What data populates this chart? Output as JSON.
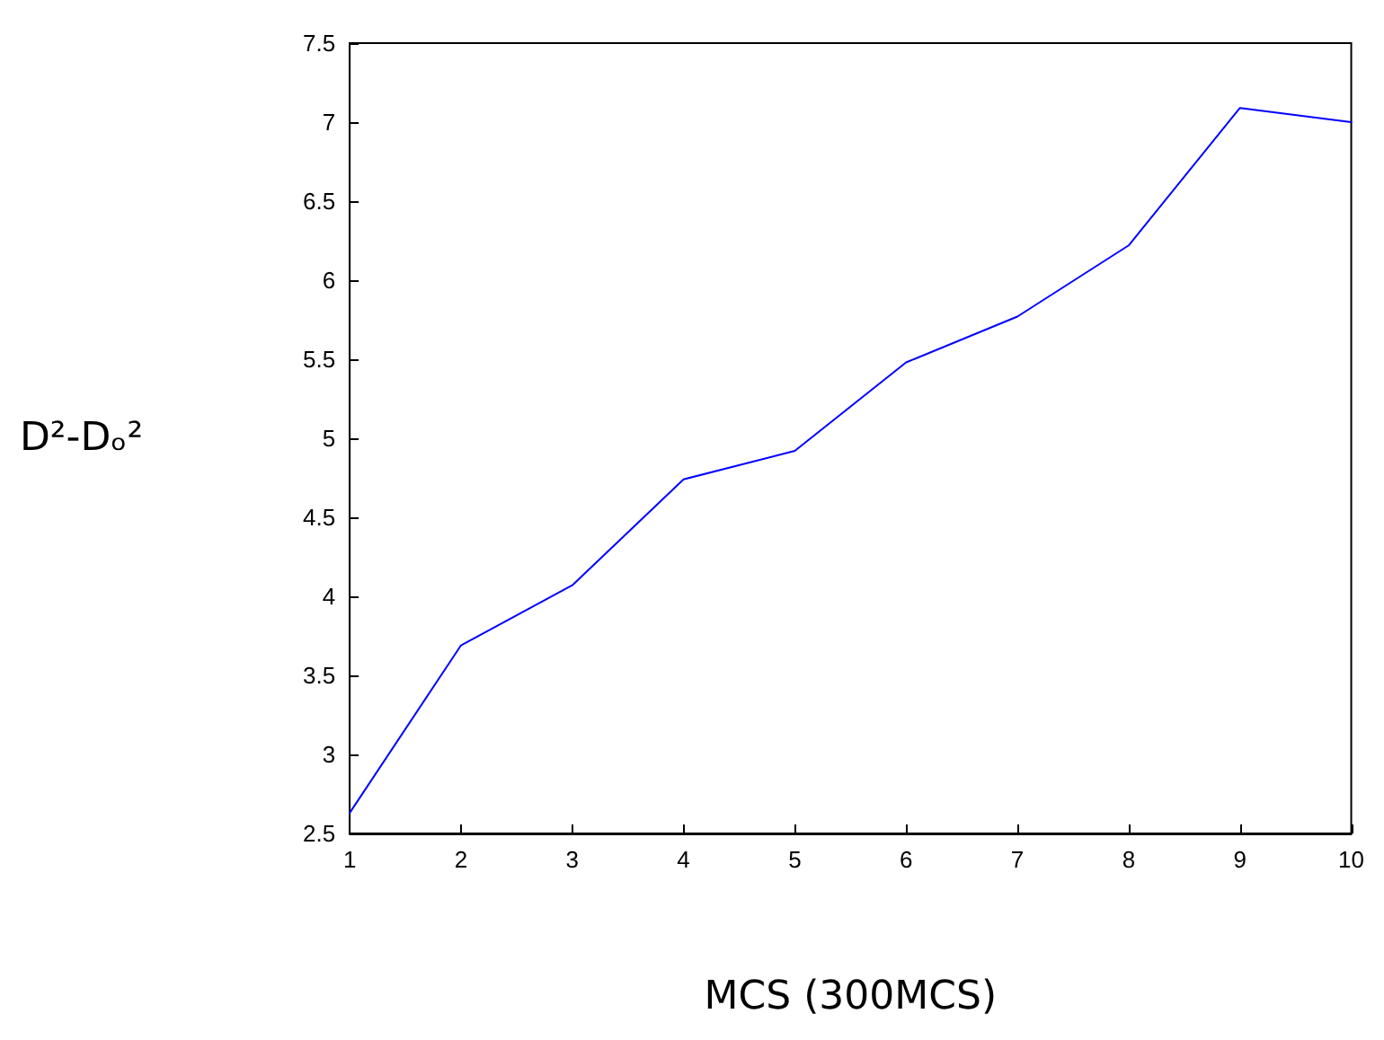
{
  "chart_data": {
    "type": "line",
    "xlabel": "MCS (300MCS)",
    "ylabel": "D²-Dₒ²",
    "x": [
      1,
      2,
      3,
      4,
      5,
      6,
      7,
      8,
      9,
      10
    ],
    "series": [
      {
        "color": "#0000ff",
        "values": [
          2.63,
          3.69,
          4.07,
          4.74,
          4.92,
          5.48,
          5.77,
          6.22,
          7.09,
          7.0
        ]
      }
    ],
    "xlim": [
      1,
      10
    ],
    "xticks": [
      1,
      2,
      3,
      4,
      5,
      6,
      7,
      8,
      9,
      10
    ],
    "ylim": [
      2.5,
      7.5
    ],
    "yticks": [
      2.5,
      3,
      3.5,
      4,
      4.5,
      5,
      5.5,
      6,
      6.5,
      7,
      7.5
    ],
    "grid": false,
    "marker": "none",
    "line_style": "solid"
  }
}
